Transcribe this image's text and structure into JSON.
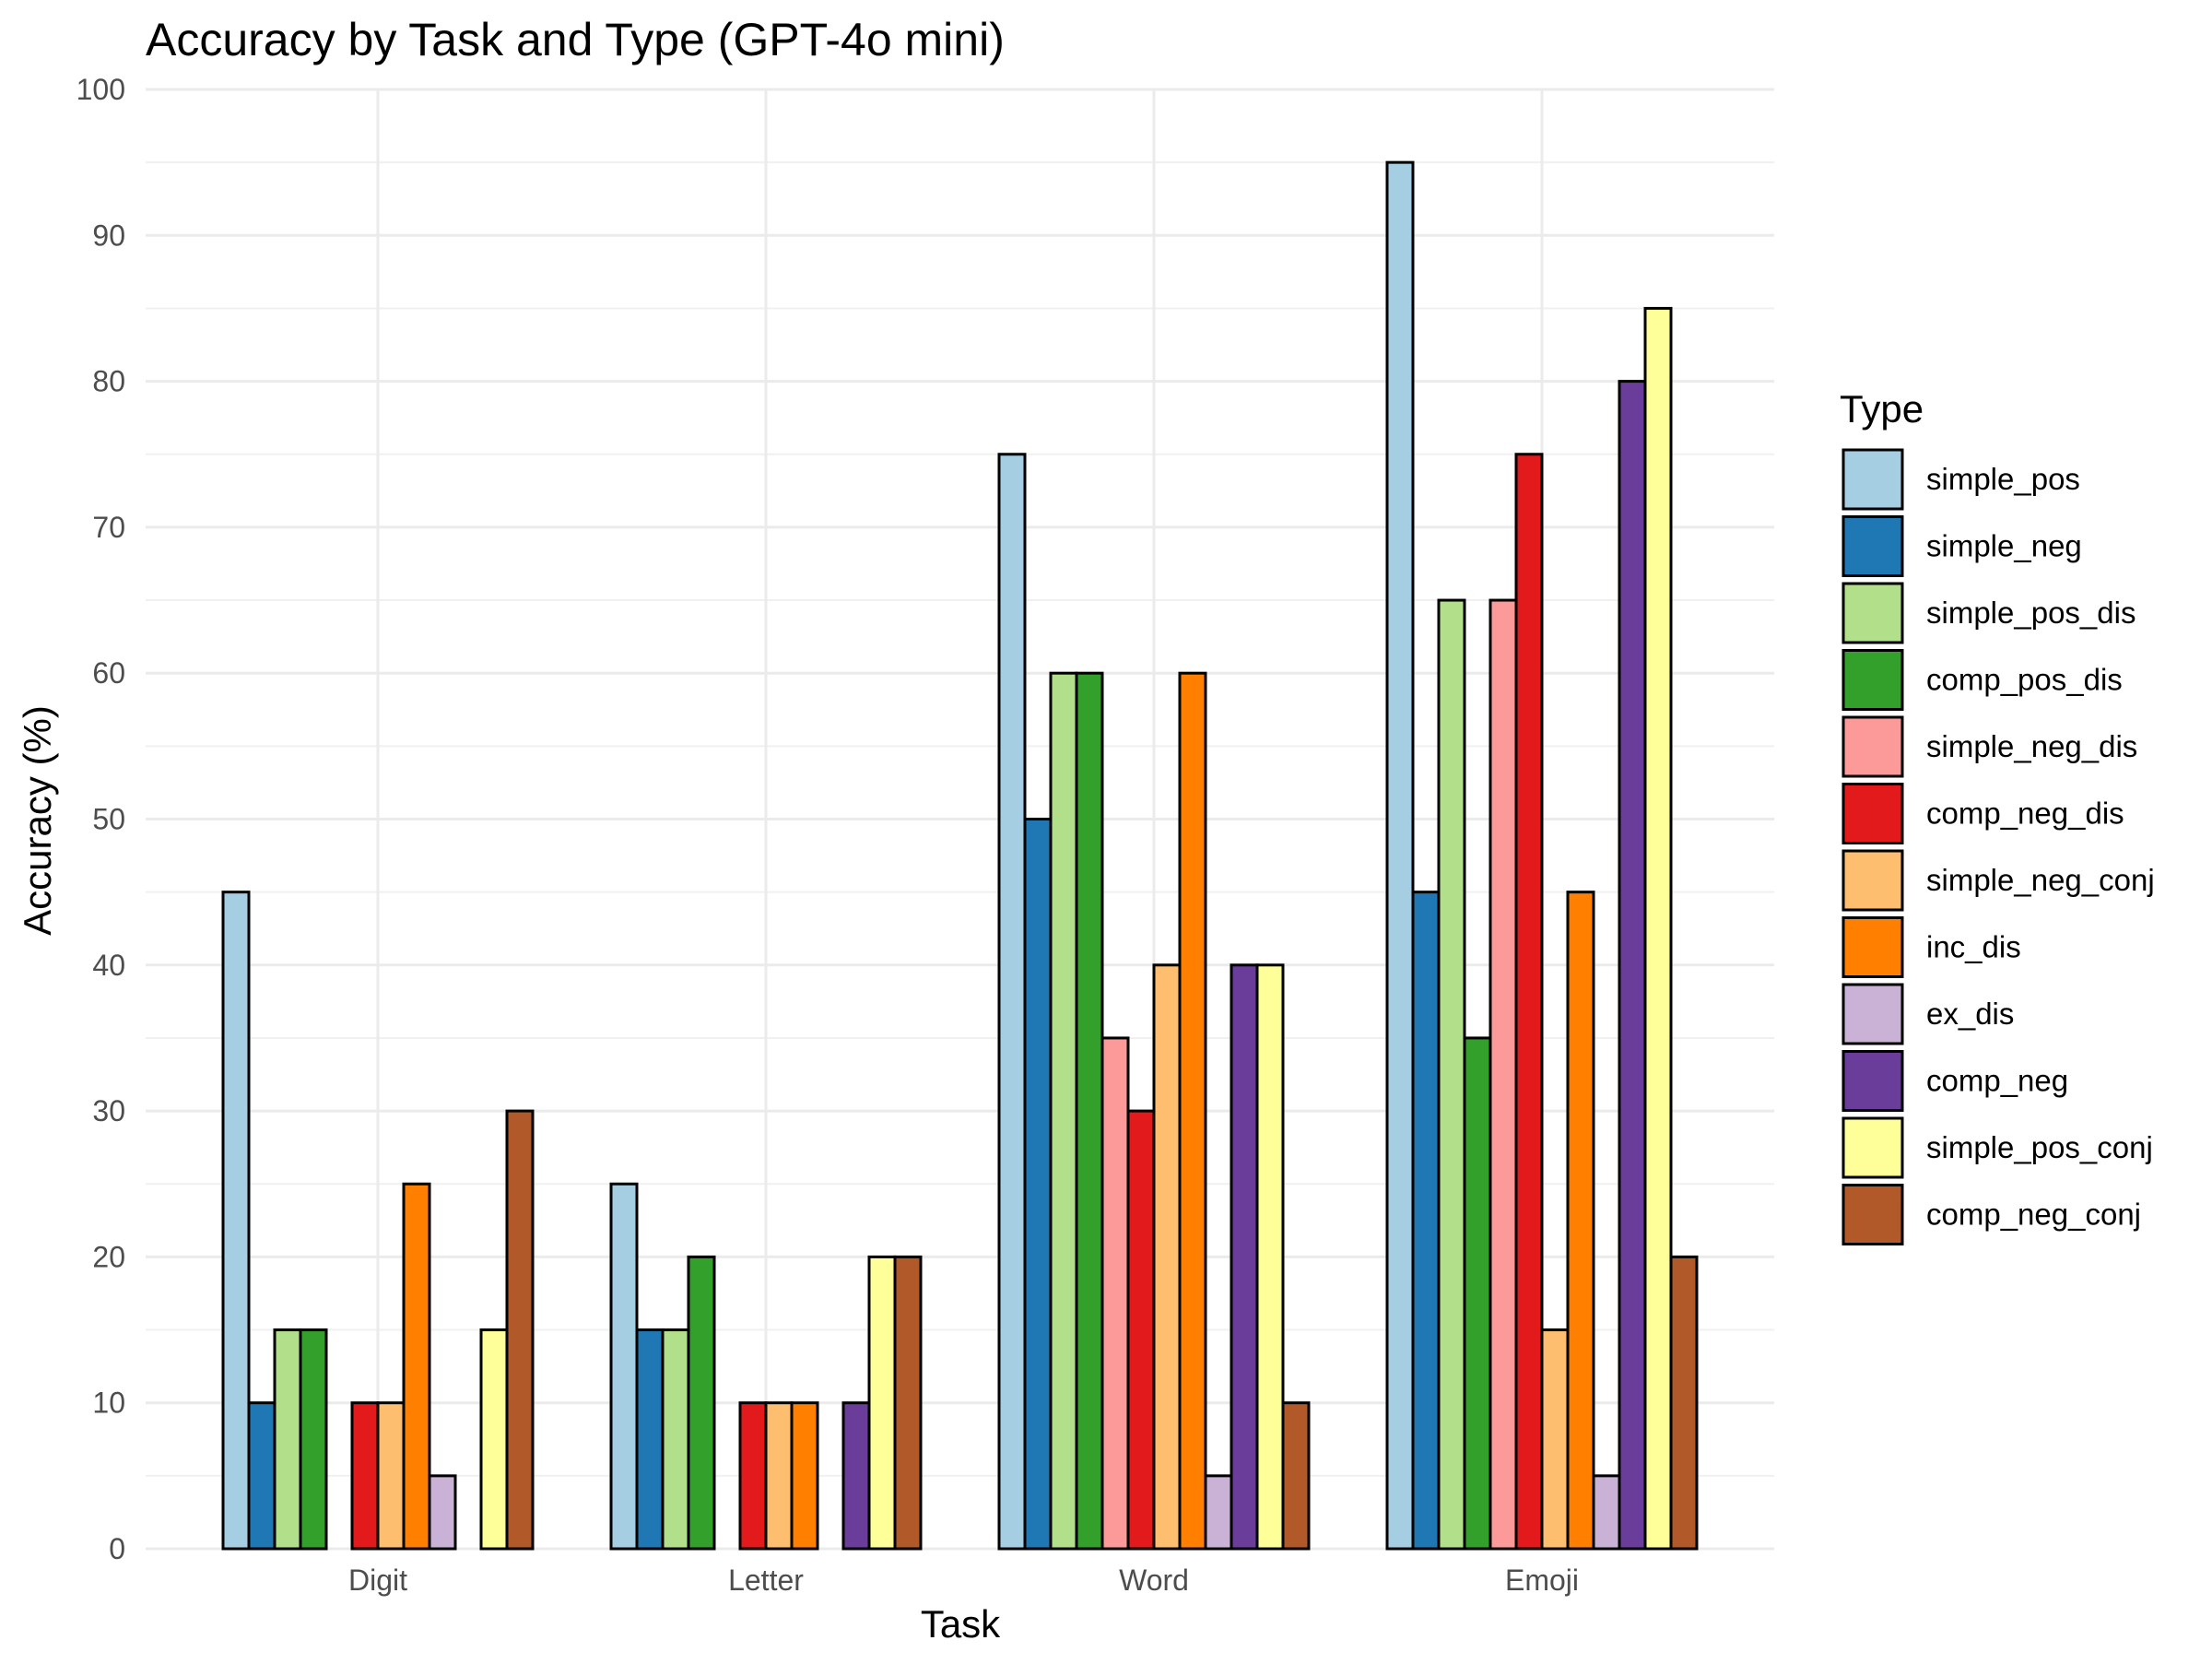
{
  "chart_data": {
    "type": "bar",
    "title": "Accuracy by Task and Type (GPT-4o mini)",
    "xlabel": "Task",
    "ylabel": "Accuracy (%)",
    "ylim": [
      0,
      100
    ],
    "yticks": [
      0,
      10,
      20,
      30,
      40,
      50,
      60,
      70,
      80,
      90,
      100
    ],
    "grid": true,
    "legend_title": "Type",
    "legend_position": "right",
    "categories": [
      "Digit",
      "Letter",
      "Word",
      "Emoji"
    ],
    "series": [
      {
        "name": "simple_pos",
        "color": "#a6cee3",
        "values": [
          45,
          25,
          75,
          95
        ]
      },
      {
        "name": "simple_neg",
        "color": "#1f78b4",
        "values": [
          10,
          15,
          50,
          45
        ]
      },
      {
        "name": "simple_pos_dis",
        "color": "#b2df8a",
        "values": [
          15,
          15,
          60,
          65
        ]
      },
      {
        "name": "comp_pos_dis",
        "color": "#33a02c",
        "values": [
          15,
          20,
          60,
          35
        ]
      },
      {
        "name": "simple_neg_dis",
        "color": "#fb9a99",
        "values": [
          0,
          0,
          35,
          65
        ]
      },
      {
        "name": "comp_neg_dis",
        "color": "#e31a1c",
        "values": [
          10,
          10,
          30,
          75
        ]
      },
      {
        "name": "simple_neg_conj",
        "color": "#fdbf6f",
        "values": [
          10,
          10,
          40,
          15
        ]
      },
      {
        "name": "inc_dis",
        "color": "#ff7f00",
        "values": [
          25,
          10,
          60,
          45
        ]
      },
      {
        "name": "ex_dis",
        "color": "#cab2d6",
        "values": [
          5,
          0,
          5,
          5
        ]
      },
      {
        "name": "comp_neg",
        "color": "#6a3d9a",
        "values": [
          0,
          10,
          40,
          80
        ]
      },
      {
        "name": "simple_pos_conj",
        "color": "#ffff99",
        "values": [
          15,
          20,
          40,
          85
        ]
      },
      {
        "name": "comp_neg_conj",
        "color": "#b15928",
        "values": [
          30,
          20,
          10,
          20
        ]
      }
    ]
  }
}
